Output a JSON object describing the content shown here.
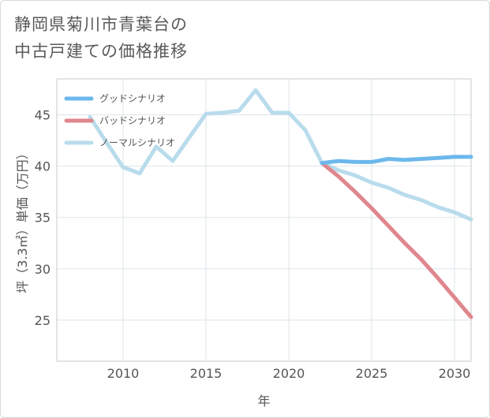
{
  "title": {
    "line1": "静岡県菊川市青葉台の",
    "line2": "中古戸建ての価格推移"
  },
  "chart_data": {
    "type": "line",
    "title": "静岡県菊川市青葉台の中古戸建ての価格推移",
    "xlabel": "年",
    "ylabel": "坪（3.3㎡）単価（万円）",
    "xlim": [
      2006,
      2031
    ],
    "ylim": [
      21,
      48.5
    ],
    "xticks": [
      2010,
      2015,
      2020,
      2025,
      2030
    ],
    "yticks": [
      25,
      30,
      35,
      40,
      45
    ],
    "legend_position": "top-left",
    "series": [
      {
        "name": "グッドシナリオ",
        "color": "#6cb8ec",
        "points": [
          [
            2022,
            40.3
          ],
          [
            2023,
            40.5
          ],
          [
            2024,
            40.4
          ],
          [
            2025,
            40.4
          ],
          [
            2026,
            40.7
          ],
          [
            2027,
            40.6
          ],
          [
            2028,
            40.7
          ],
          [
            2029,
            40.8
          ],
          [
            2030,
            40.9
          ],
          [
            2031,
            40.9
          ]
        ]
      },
      {
        "name": "バッドシナリオ",
        "color": "#e0868d",
        "points": [
          [
            2022,
            40.3
          ],
          [
            2023,
            39.0
          ],
          [
            2024,
            37.5
          ],
          [
            2025,
            35.9
          ],
          [
            2026,
            34.2
          ],
          [
            2027,
            32.5
          ],
          [
            2028,
            30.9
          ],
          [
            2029,
            29.1
          ],
          [
            2030,
            27.2
          ],
          [
            2031,
            25.3
          ]
        ]
      },
      {
        "name": "ノーマルシナリオ",
        "color": "#b9dcec",
        "points": [
          [
            2008,
            44.8
          ],
          [
            2009,
            42.3
          ],
          [
            2010,
            39.9
          ],
          [
            2011,
            39.3
          ],
          [
            2012,
            41.9
          ],
          [
            2013,
            40.5
          ],
          [
            2014,
            42.8
          ],
          [
            2015,
            45.1
          ],
          [
            2016,
            45.2
          ],
          [
            2017,
            45.4
          ],
          [
            2018,
            47.4
          ],
          [
            2019,
            45.2
          ],
          [
            2020,
            45.2
          ],
          [
            2021,
            43.5
          ],
          [
            2022,
            40.3
          ],
          [
            2023,
            39.6
          ],
          [
            2024,
            39.1
          ],
          [
            2025,
            38.4
          ],
          [
            2026,
            37.9
          ],
          [
            2027,
            37.2
          ],
          [
            2028,
            36.7
          ],
          [
            2029,
            36.0
          ],
          [
            2030,
            35.5
          ],
          [
            2031,
            34.8
          ]
        ]
      }
    ]
  }
}
